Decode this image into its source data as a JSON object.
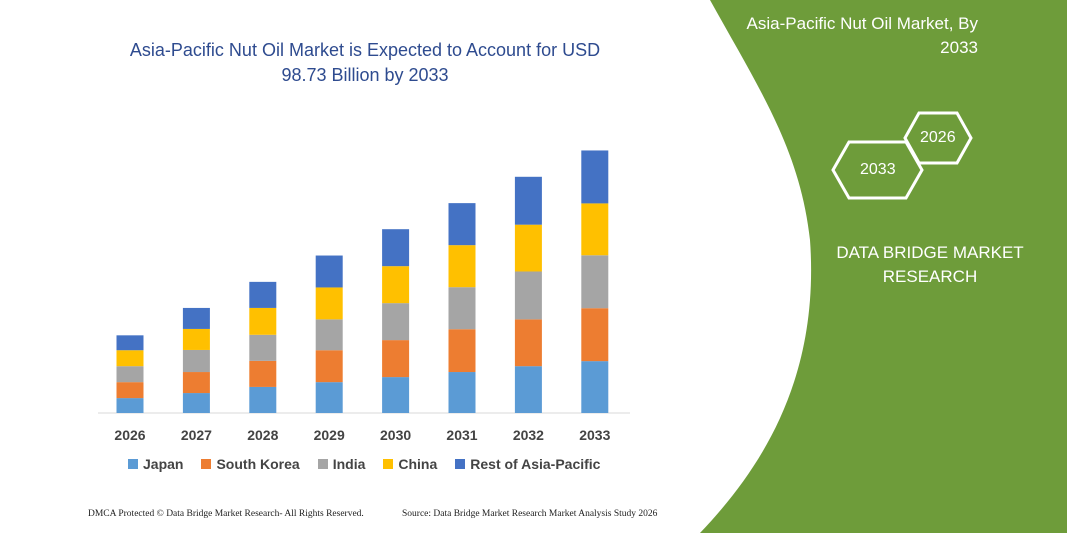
{
  "title": "Asia-Pacific Nut Oil Market is Expected to Account for USD 98.73 Billion by 2033",
  "side_panel": {
    "title": "Asia-Pacific Nut Oil Market, By 2033",
    "hex_labels": [
      "2026",
      "2033"
    ],
    "brand": "DATA BRIDGE MARKET RESEARCH",
    "color": "#6e9c3a"
  },
  "footer": {
    "left": "DMCA Protected © Data Bridge Market Research- All Rights Reserved.",
    "right": "Source: Data Bridge Market Research Market Analysis Study 2026"
  },
  "chart_data": {
    "type": "bar",
    "stacked": true,
    "title": "Asia-Pacific Nut Oil Market is Expected to Account for USD 98.73 Billion by 2033",
    "categories": [
      "2026",
      "2027",
      "2028",
      "2029",
      "2030",
      "2031",
      "2032",
      "2033"
    ],
    "ylim": [
      0,
      100
    ],
    "grid": false,
    "legend_position": "bottom",
    "series": [
      {
        "name": "Japan",
        "color": "#5b9bd5",
        "values": [
          5.6,
          7.5,
          9.8,
          11.6,
          13.5,
          15.4,
          17.6,
          19.5
        ]
      },
      {
        "name": "South Korea",
        "color": "#ed7d31",
        "values": [
          6.0,
          7.9,
          9.8,
          12.0,
          13.9,
          16.1,
          17.6,
          19.9
        ]
      },
      {
        "name": "India",
        "color": "#a5a5a5",
        "values": [
          6.0,
          8.3,
          9.8,
          11.6,
          13.9,
          15.8,
          18.0,
          19.9
        ]
      },
      {
        "name": "China",
        "color": "#ffc000",
        "values": [
          6.0,
          7.9,
          10.1,
          12.0,
          13.9,
          15.8,
          17.6,
          19.5
        ]
      },
      {
        "name": "Rest of Asia-Pacific",
        "color": "#4472c4",
        "values": [
          5.6,
          7.9,
          9.8,
          12.0,
          13.9,
          15.8,
          18.0,
          19.9
        ]
      }
    ]
  }
}
